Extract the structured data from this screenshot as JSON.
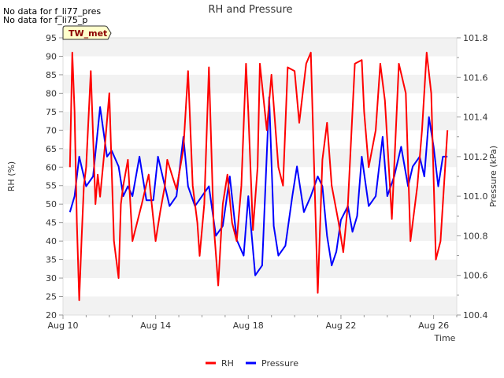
{
  "chart_data": {
    "type": "line",
    "title": "RH and Pressure",
    "xlabel": "Time",
    "ylabel": "RH (%)",
    "y2label": "Pressure (kPa)",
    "x_ticks": [
      "Aug 10",
      "Aug 14",
      "Aug 18",
      "Aug 22",
      "Aug 26"
    ],
    "x_tick_days": [
      10,
      14,
      18,
      22,
      26
    ],
    "xlim_days": [
      10,
      27
    ],
    "ylim": [
      20,
      95
    ],
    "y_ticks": [
      20,
      25,
      30,
      35,
      40,
      45,
      50,
      55,
      60,
      65,
      70,
      75,
      80,
      85,
      90,
      95
    ],
    "y2lim": [
      100.4,
      101.8
    ],
    "y2_ticks": [
      "100.4",
      "100.6",
      "100.8",
      "101.0",
      "101.2",
      "101.4",
      "101.6",
      "101.8"
    ],
    "grid": "horizontal bands",
    "legend_position": "bottom-center",
    "notes": [
      "No data for f_li77_pres",
      "No data for f_li75_p"
    ],
    "badge": "TW_met",
    "series": [
      {
        "name": "RH",
        "axis": "left",
        "color": "#ff0000",
        "x": [
          10.3,
          10.4,
          10.5,
          10.6,
          10.7,
          10.8,
          10.9,
          11.0,
          11.2,
          11.4,
          11.5,
          11.6,
          11.8,
          12.0,
          12.2,
          12.4,
          12.5,
          12.6,
          12.8,
          13.0,
          13.2,
          13.4,
          13.7,
          14.0,
          14.2,
          14.4,
          14.5,
          14.7,
          14.9,
          15.2,
          15.4,
          15.6,
          15.8,
          15.9,
          16.1,
          16.3,
          16.5,
          16.7,
          16.9,
          17.1,
          17.3,
          17.5,
          17.7,
          17.9,
          18.0,
          18.2,
          18.4,
          18.5,
          18.8,
          19.0,
          19.3,
          19.5,
          19.7,
          20.0,
          20.2,
          20.5,
          20.7,
          21.0,
          21.2,
          21.4,
          21.6,
          21.9,
          22.1,
          22.3,
          22.6,
          22.9,
          23.0,
          23.2,
          23.5,
          23.7,
          23.9,
          24.2,
          24.5,
          24.8,
          25.0,
          25.3,
          25.5,
          25.7,
          25.9,
          26.1,
          26.3,
          26.6
        ],
        "values": [
          60,
          91,
          75,
          45,
          24,
          40,
          55,
          60,
          86,
          50,
          58,
          52,
          65,
          80,
          40,
          30,
          50,
          55,
          62,
          40,
          45,
          50,
          58,
          40,
          48,
          55,
          62,
          58,
          54,
          65,
          86,
          55,
          45,
          36,
          50,
          87,
          45,
          28,
          50,
          58,
          45,
          40,
          55,
          88,
          75,
          43,
          60,
          88,
          70,
          85,
          60,
          55,
          87,
          86,
          72,
          88,
          91,
          26,
          62,
          72,
          55,
          45,
          37,
          50,
          88,
          89,
          75,
          60,
          70,
          88,
          78,
          46,
          88,
          80,
          40,
          55,
          70,
          91,
          80,
          35,
          40,
          70
        ],
        "drawn_x_end": 26.7
      },
      {
        "name": "Pressure",
        "axis": "right",
        "color": "#0000ff",
        "x": [
          10.3,
          10.5,
          10.7,
          11.0,
          11.3,
          11.6,
          11.9,
          12.1,
          12.4,
          12.6,
          12.8,
          13.0,
          13.3,
          13.6,
          13.9,
          14.1,
          14.3,
          14.6,
          14.9,
          15.2,
          15.4,
          15.7,
          16.0,
          16.3,
          16.6,
          16.9,
          17.2,
          17.5,
          17.8,
          18.0,
          18.3,
          18.6,
          18.9,
          19.1,
          19.3,
          19.6,
          19.9,
          20.1,
          20.4,
          20.7,
          21.0,
          21.2,
          21.4,
          21.6,
          21.8,
          22.0,
          22.3,
          22.5,
          22.7,
          22.9,
          23.2,
          23.5,
          23.8,
          24.0,
          24.3,
          24.6,
          24.9,
          25.1,
          25.4,
          25.6,
          25.8,
          26.0,
          26.2,
          26.4,
          26.6
        ],
        "values": [
          100.92,
          101.0,
          101.2,
          101.05,
          101.1,
          101.45,
          101.2,
          101.23,
          101.15,
          101.0,
          101.05,
          101.0,
          101.2,
          100.98,
          100.98,
          101.2,
          101.1,
          100.95,
          101.0,
          101.3,
          101.05,
          100.95,
          101.0,
          101.05,
          100.8,
          100.85,
          101.1,
          100.78,
          100.7,
          101.0,
          100.6,
          100.65,
          101.5,
          100.85,
          100.7,
          100.75,
          101.0,
          101.15,
          100.92,
          101.0,
          101.1,
          101.05,
          100.8,
          100.65,
          100.72,
          100.88,
          100.95,
          100.82,
          100.9,
          101.2,
          100.95,
          101.0,
          101.3,
          101.0,
          101.1,
          101.25,
          101.05,
          101.15,
          101.2,
          101.1,
          101.4,
          101.25,
          101.05,
          101.2,
          101.2
        ]
      }
    ]
  }
}
